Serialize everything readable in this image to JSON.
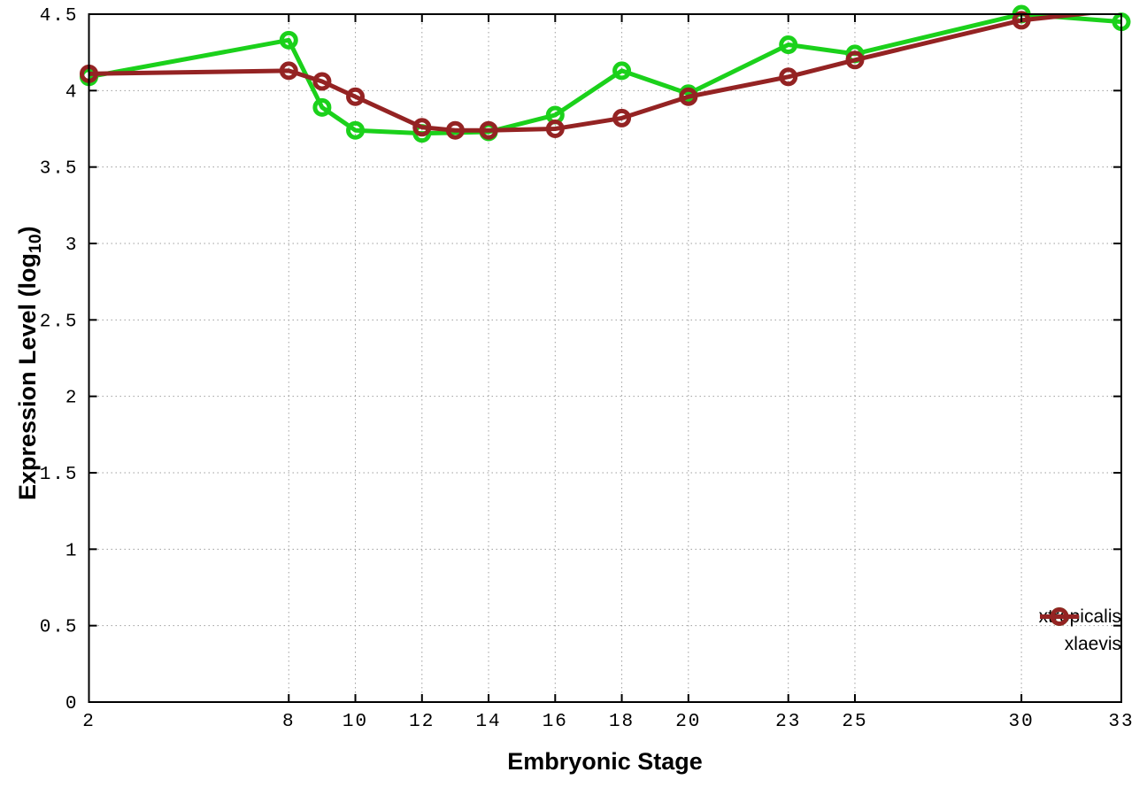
{
  "chart_data": {
    "type": "line",
    "title": "",
    "xlabel": "Embryonic Stage",
    "ylabel": "Expression Level (log10)",
    "ylabel_parts": {
      "base": "Expression Level (log",
      "sub": "10",
      "close": ")"
    },
    "xlim": [
      2,
      33
    ],
    "ylim": [
      0,
      4.5
    ],
    "xticks": [
      2,
      8,
      10,
      12,
      14,
      16,
      18,
      20,
      23,
      25,
      30,
      33
    ],
    "yticks": [
      0,
      0.5,
      1,
      1.5,
      2,
      2.5,
      3,
      3.5,
      4,
      4.5
    ],
    "grid": true,
    "grid_style": "dotted",
    "legend_position": "bottom-right",
    "background_color": "#ffffff",
    "border_color": "#000000",
    "series": [
      {
        "name": "xtropicalis",
        "color": "#1bd11b",
        "marker": "open-circle",
        "x": [
          2,
          8,
          9,
          10,
          12,
          14,
          16,
          18,
          20,
          23,
          25,
          30,
          33
        ],
        "y": [
          4.09,
          4.33,
          3.89,
          3.74,
          3.72,
          3.73,
          3.84,
          4.13,
          3.98,
          4.3,
          4.24,
          4.5,
          4.45
        ]
      },
      {
        "name": "xlaevis",
        "color": "#942323",
        "marker": "open-circle",
        "x": [
          2,
          8,
          9,
          10,
          12,
          13,
          14,
          16,
          18,
          20,
          23,
          25,
          30,
          33
        ],
        "y": [
          4.11,
          4.13,
          4.06,
          3.96,
          3.76,
          3.74,
          3.74,
          3.75,
          3.82,
          3.96,
          4.09,
          4.2,
          4.46,
          4.53
        ],
        "note": "last segment rises above y-axis max and is clipped at the top border; no marker drawn at stage 33"
      }
    ]
  }
}
